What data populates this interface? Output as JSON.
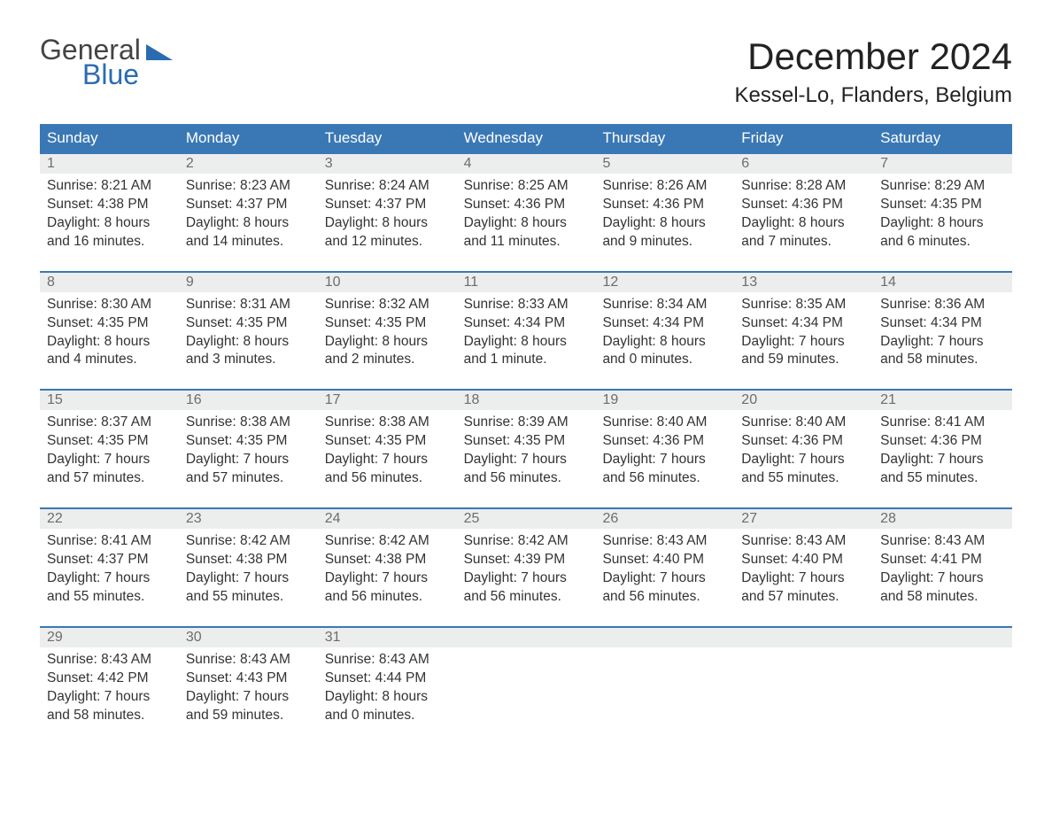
{
  "logo": {
    "word1": "General",
    "word2": "Blue"
  },
  "header": {
    "month_title": "December 2024",
    "location": "Kessel-Lo, Flanders, Belgium"
  },
  "calendar": {
    "header_bg": "#3a78b5",
    "header_text_color": "#ffffff",
    "daynum_bg": "#eceded",
    "week_border_color": "#3a78b5",
    "text_color": "#333333",
    "font_family": "Arial",
    "day_labels": [
      "Sunday",
      "Monday",
      "Tuesday",
      "Wednesday",
      "Thursday",
      "Friday",
      "Saturday"
    ],
    "weeks": [
      [
        {
          "n": "1",
          "sr": "Sunrise: 8:21 AM",
          "ss": "Sunset: 4:38 PM",
          "d1": "Daylight: 8 hours",
          "d2": "and 16 minutes."
        },
        {
          "n": "2",
          "sr": "Sunrise: 8:23 AM",
          "ss": "Sunset: 4:37 PM",
          "d1": "Daylight: 8 hours",
          "d2": "and 14 minutes."
        },
        {
          "n": "3",
          "sr": "Sunrise: 8:24 AM",
          "ss": "Sunset: 4:37 PM",
          "d1": "Daylight: 8 hours",
          "d2": "and 12 minutes."
        },
        {
          "n": "4",
          "sr": "Sunrise: 8:25 AM",
          "ss": "Sunset: 4:36 PM",
          "d1": "Daylight: 8 hours",
          "d2": "and 11 minutes."
        },
        {
          "n": "5",
          "sr": "Sunrise: 8:26 AM",
          "ss": "Sunset: 4:36 PM",
          "d1": "Daylight: 8 hours",
          "d2": "and 9 minutes."
        },
        {
          "n": "6",
          "sr": "Sunrise: 8:28 AM",
          "ss": "Sunset: 4:36 PM",
          "d1": "Daylight: 8 hours",
          "d2": "and 7 minutes."
        },
        {
          "n": "7",
          "sr": "Sunrise: 8:29 AM",
          "ss": "Sunset: 4:35 PM",
          "d1": "Daylight: 8 hours",
          "d2": "and 6 minutes."
        }
      ],
      [
        {
          "n": "8",
          "sr": "Sunrise: 8:30 AM",
          "ss": "Sunset: 4:35 PM",
          "d1": "Daylight: 8 hours",
          "d2": "and 4 minutes."
        },
        {
          "n": "9",
          "sr": "Sunrise: 8:31 AM",
          "ss": "Sunset: 4:35 PM",
          "d1": "Daylight: 8 hours",
          "d2": "and 3 minutes."
        },
        {
          "n": "10",
          "sr": "Sunrise: 8:32 AM",
          "ss": "Sunset: 4:35 PM",
          "d1": "Daylight: 8 hours",
          "d2": "and 2 minutes."
        },
        {
          "n": "11",
          "sr": "Sunrise: 8:33 AM",
          "ss": "Sunset: 4:34 PM",
          "d1": "Daylight: 8 hours",
          "d2": "and 1 minute."
        },
        {
          "n": "12",
          "sr": "Sunrise: 8:34 AM",
          "ss": "Sunset: 4:34 PM",
          "d1": "Daylight: 8 hours",
          "d2": "and 0 minutes."
        },
        {
          "n": "13",
          "sr": "Sunrise: 8:35 AM",
          "ss": "Sunset: 4:34 PM",
          "d1": "Daylight: 7 hours",
          "d2": "and 59 minutes."
        },
        {
          "n": "14",
          "sr": "Sunrise: 8:36 AM",
          "ss": "Sunset: 4:34 PM",
          "d1": "Daylight: 7 hours",
          "d2": "and 58 minutes."
        }
      ],
      [
        {
          "n": "15",
          "sr": "Sunrise: 8:37 AM",
          "ss": "Sunset: 4:35 PM",
          "d1": "Daylight: 7 hours",
          "d2": "and 57 minutes."
        },
        {
          "n": "16",
          "sr": "Sunrise: 8:38 AM",
          "ss": "Sunset: 4:35 PM",
          "d1": "Daylight: 7 hours",
          "d2": "and 57 minutes."
        },
        {
          "n": "17",
          "sr": "Sunrise: 8:38 AM",
          "ss": "Sunset: 4:35 PM",
          "d1": "Daylight: 7 hours",
          "d2": "and 56 minutes."
        },
        {
          "n": "18",
          "sr": "Sunrise: 8:39 AM",
          "ss": "Sunset: 4:35 PM",
          "d1": "Daylight: 7 hours",
          "d2": "and 56 minutes."
        },
        {
          "n": "19",
          "sr": "Sunrise: 8:40 AM",
          "ss": "Sunset: 4:36 PM",
          "d1": "Daylight: 7 hours",
          "d2": "and 56 minutes."
        },
        {
          "n": "20",
          "sr": "Sunrise: 8:40 AM",
          "ss": "Sunset: 4:36 PM",
          "d1": "Daylight: 7 hours",
          "d2": "and 55 minutes."
        },
        {
          "n": "21",
          "sr": "Sunrise: 8:41 AM",
          "ss": "Sunset: 4:36 PM",
          "d1": "Daylight: 7 hours",
          "d2": "and 55 minutes."
        }
      ],
      [
        {
          "n": "22",
          "sr": "Sunrise: 8:41 AM",
          "ss": "Sunset: 4:37 PM",
          "d1": "Daylight: 7 hours",
          "d2": "and 55 minutes."
        },
        {
          "n": "23",
          "sr": "Sunrise: 8:42 AM",
          "ss": "Sunset: 4:38 PM",
          "d1": "Daylight: 7 hours",
          "d2": "and 55 minutes."
        },
        {
          "n": "24",
          "sr": "Sunrise: 8:42 AM",
          "ss": "Sunset: 4:38 PM",
          "d1": "Daylight: 7 hours",
          "d2": "and 56 minutes."
        },
        {
          "n": "25",
          "sr": "Sunrise: 8:42 AM",
          "ss": "Sunset: 4:39 PM",
          "d1": "Daylight: 7 hours",
          "d2": "and 56 minutes."
        },
        {
          "n": "26",
          "sr": "Sunrise: 8:43 AM",
          "ss": "Sunset: 4:40 PM",
          "d1": "Daylight: 7 hours",
          "d2": "and 56 minutes."
        },
        {
          "n": "27",
          "sr": "Sunrise: 8:43 AM",
          "ss": "Sunset: 4:40 PM",
          "d1": "Daylight: 7 hours",
          "d2": "and 57 minutes."
        },
        {
          "n": "28",
          "sr": "Sunrise: 8:43 AM",
          "ss": "Sunset: 4:41 PM",
          "d1": "Daylight: 7 hours",
          "d2": "and 58 minutes."
        }
      ],
      [
        {
          "n": "29",
          "sr": "Sunrise: 8:43 AM",
          "ss": "Sunset: 4:42 PM",
          "d1": "Daylight: 7 hours",
          "d2": "and 58 minutes."
        },
        {
          "n": "30",
          "sr": "Sunrise: 8:43 AM",
          "ss": "Sunset: 4:43 PM",
          "d1": "Daylight: 7 hours",
          "d2": "and 59 minutes."
        },
        {
          "n": "31",
          "sr": "Sunrise: 8:43 AM",
          "ss": "Sunset: 4:44 PM",
          "d1": "Daylight: 8 hours",
          "d2": "and 0 minutes."
        },
        {
          "n": "",
          "sr": "",
          "ss": "",
          "d1": "",
          "d2": ""
        },
        {
          "n": "",
          "sr": "",
          "ss": "",
          "d1": "",
          "d2": ""
        },
        {
          "n": "",
          "sr": "",
          "ss": "",
          "d1": "",
          "d2": ""
        },
        {
          "n": "",
          "sr": "",
          "ss": "",
          "d1": "",
          "d2": ""
        }
      ]
    ]
  }
}
